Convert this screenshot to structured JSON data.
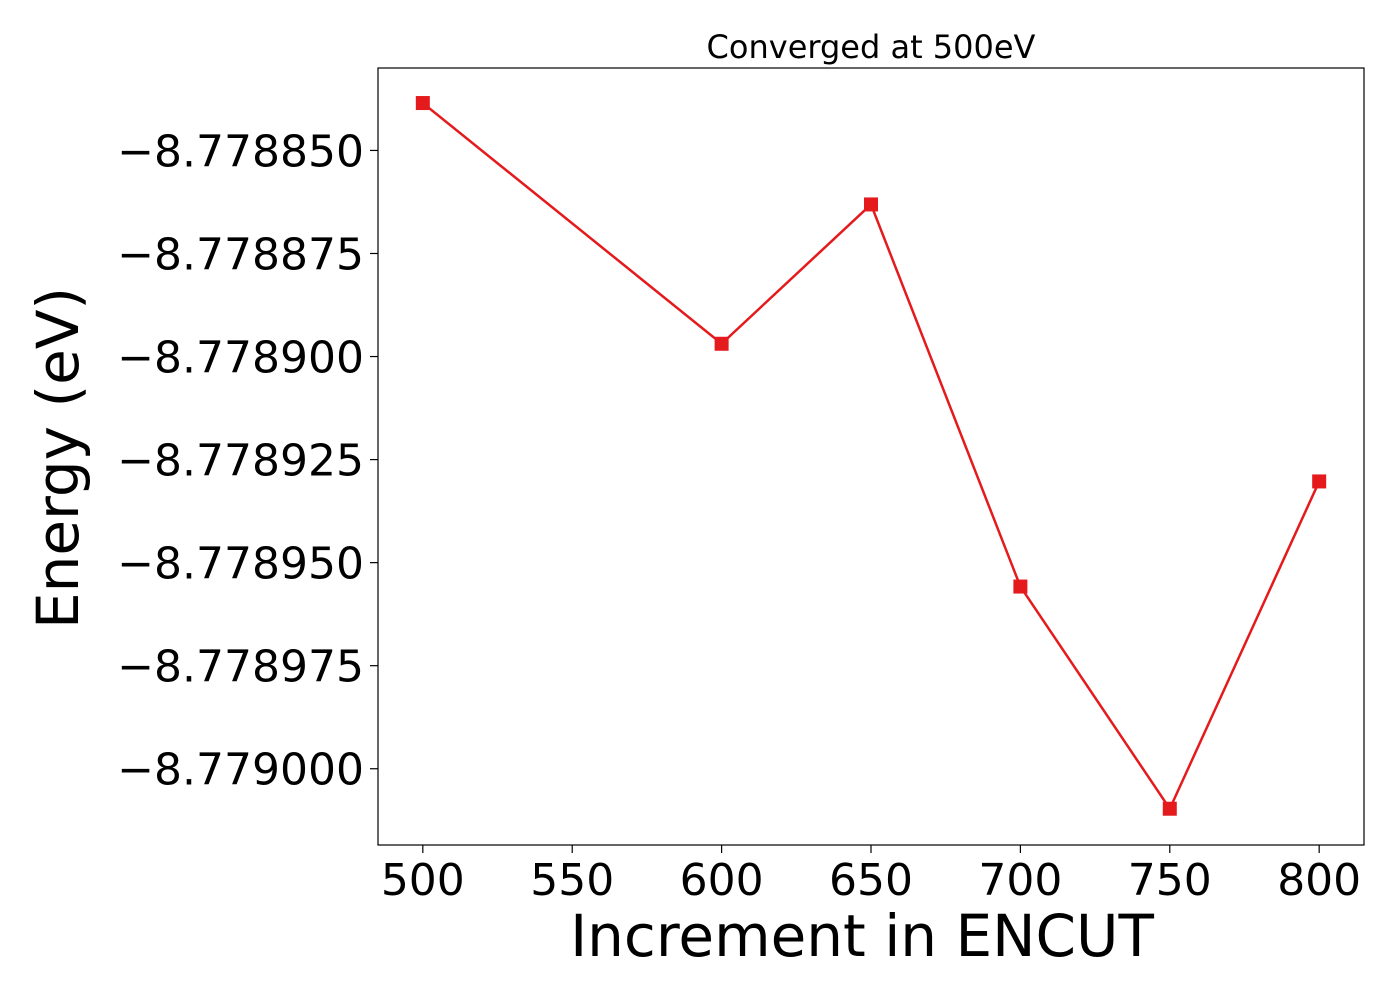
{
  "chart_data": {
    "type": "line",
    "title": "Converged at 500eV",
    "xlabel": "Increment in ENCUT",
    "ylabel": "Energy (eV)",
    "x": [
      500,
      600,
      650,
      700,
      750,
      800
    ],
    "series": [
      {
        "values": [
          -8.7788385,
          -8.7788969,
          -8.7788631,
          -8.7789558,
          -8.7790097,
          -8.7789303
        ],
        "color": "#e41a1c",
        "marker": "square"
      }
    ],
    "xlim": [
      485,
      815
    ],
    "ylim": [
      -8.7790185,
      -8.77883
    ],
    "x_ticks": [
      500,
      550,
      600,
      650,
      700,
      750,
      800
    ],
    "x_tick_labels": [
      "500",
      "550",
      "600",
      "650",
      "700",
      "750",
      "800"
    ],
    "y_ticks": [
      -8.77885,
      -8.778875,
      -8.7789,
      -8.778925,
      -8.77895,
      -8.778975,
      -8.779
    ],
    "y_tick_labels": [
      "−8.778850",
      "−8.778875",
      "−8.778900",
      "−8.778925",
      "−8.778950",
      "−8.778975",
      "−8.779000"
    ],
    "grid": false,
    "legend": "none"
  }
}
